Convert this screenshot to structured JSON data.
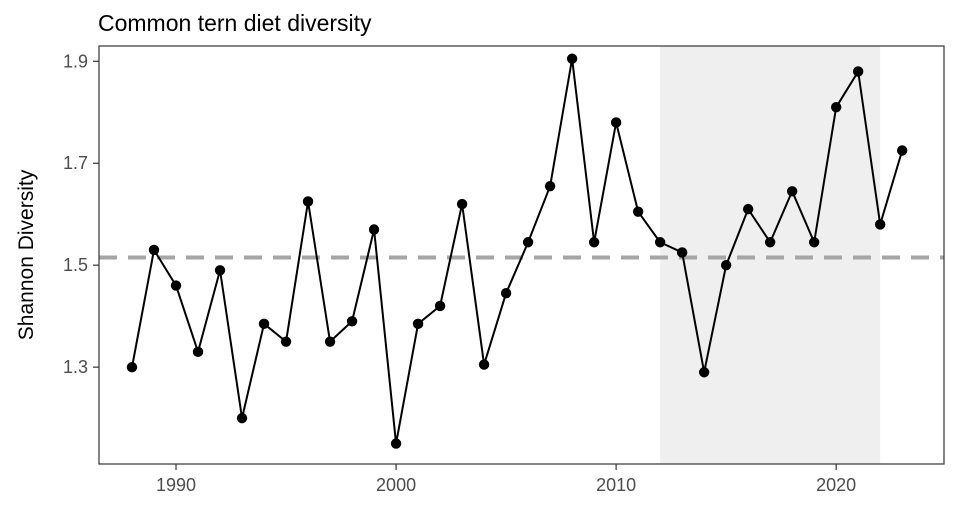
{
  "chart_data": {
    "type": "line",
    "title": "Common tern diet diversity",
    "xlabel": "",
    "ylabel": "Shannon Diversity",
    "xlim": [
      1986.5,
      2024.9
    ],
    "ylim": [
      1.11,
      1.93
    ],
    "x_ticks": [
      1990,
      2000,
      2010,
      2020
    ],
    "y_ticks": [
      1.3,
      1.5,
      1.7,
      1.9
    ],
    "x_tick_labels": [
      "1990",
      "2000",
      "2010",
      "2020"
    ],
    "y_tick_labels": [
      "1.3",
      "1.5",
      "1.7",
      "1.9"
    ],
    "reference_line": {
      "y": 1.515,
      "style": "dashed",
      "color": "#a6a6a6"
    },
    "shaded_region": {
      "x": [
        2012,
        2022
      ],
      "color": "#efefef"
    },
    "grid": false,
    "line_color": "#000000",
    "series": [
      {
        "x": [
          1988,
          1989,
          1990,
          1991,
          1992,
          1993,
          1994,
          1995,
          1996,
          1997,
          1998,
          1999,
          2000,
          2001,
          2002,
          2003,
          2004,
          2005,
          2006,
          2007,
          2008,
          2009,
          2010,
          2011,
          2012,
          2013,
          2014,
          2015,
          2016,
          2017,
          2018,
          2019,
          2020,
          2021,
          2022,
          2023
        ],
        "values": [
          1.3,
          1.53,
          1.46,
          1.33,
          1.49,
          1.2,
          1.385,
          1.35,
          1.625,
          1.35,
          1.39,
          1.57,
          1.15,
          1.385,
          1.42,
          1.62,
          1.305,
          1.445,
          1.545,
          1.655,
          1.905,
          1.545,
          1.78,
          1.605,
          1.545,
          1.525,
          1.29,
          1.5,
          1.61,
          1.545,
          1.645,
          1.545,
          1.81,
          1.88,
          1.58,
          1.725
        ]
      }
    ]
  }
}
